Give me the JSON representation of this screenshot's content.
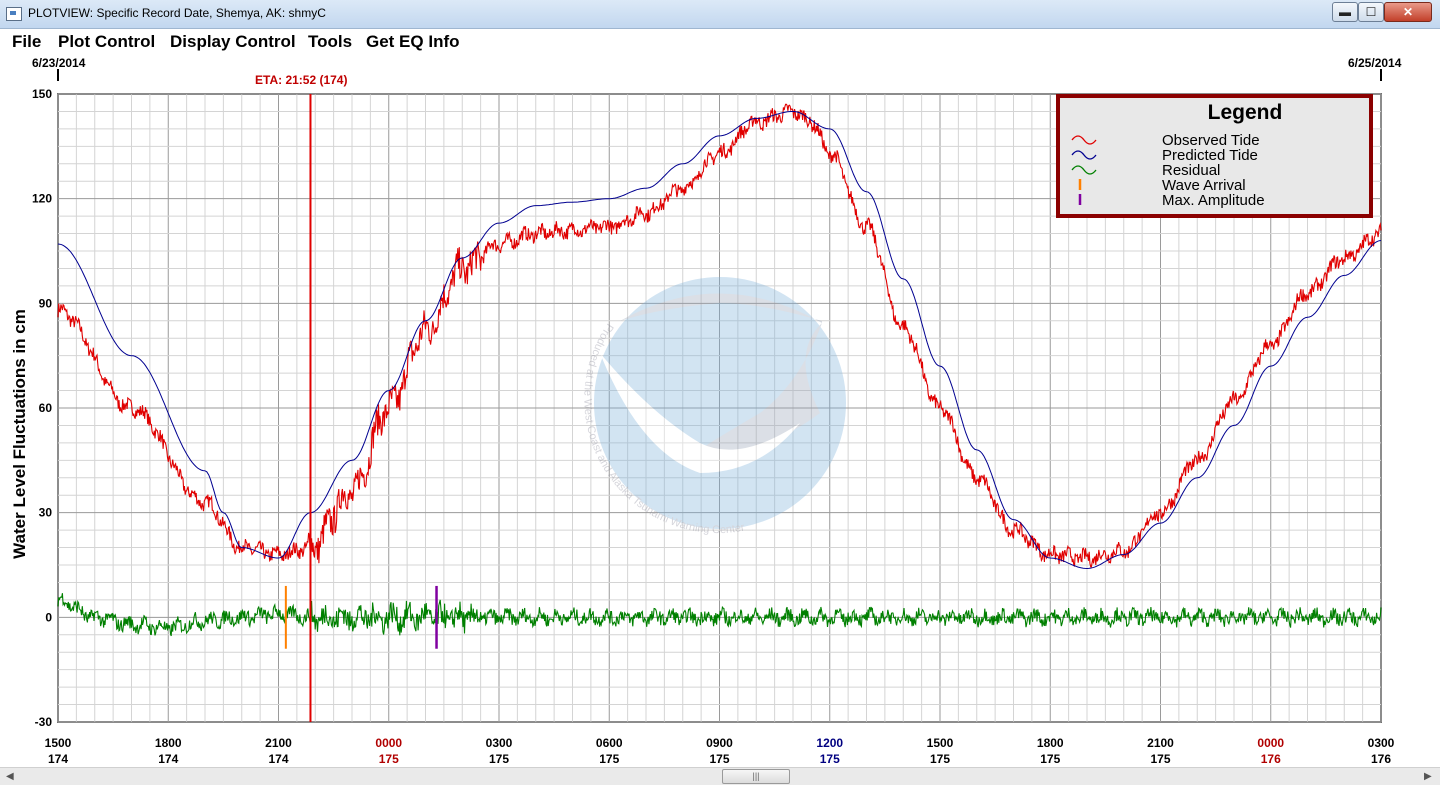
{
  "window": {
    "title": "PLOTVIEW: Specific Record Date, Shemya, AK: shmyC",
    "min_symbol": "▬",
    "max_symbol": "☐",
    "close_symbol": "✕"
  },
  "menu": [
    "File",
    "Plot Control",
    "Display Control",
    "Tools",
    "Get EQ Info"
  ],
  "plot": {
    "start_date": "6/23/2014",
    "end_date": "6/25/2014",
    "eta_label": "ETA: 21:52 (174)",
    "ylabel": "Water Level Fluctuations in cm",
    "y_ticks": [
      "150",
      "120",
      "90",
      "60",
      "30",
      "0",
      "-30"
    ],
    "x_ticks": [
      {
        "time": "1500",
        "day": "174",
        "color": "#000000"
      },
      {
        "time": "1800",
        "day": "174",
        "color": "#000000"
      },
      {
        "time": "2100",
        "day": "174",
        "color": "#000000"
      },
      {
        "time": "0000",
        "day": "175",
        "color": "#b00000"
      },
      {
        "time": "0300",
        "day": "175",
        "color": "#000000"
      },
      {
        "time": "0600",
        "day": "175",
        "color": "#000000"
      },
      {
        "time": "0900",
        "day": "175",
        "color": "#000000"
      },
      {
        "time": "1200",
        "day": "175",
        "color": "#000080"
      },
      {
        "time": "1500",
        "day": "175",
        "color": "#000000"
      },
      {
        "time": "1800",
        "day": "175",
        "color": "#000000"
      },
      {
        "time": "2100",
        "day": "175",
        "color": "#000000"
      },
      {
        "time": "0000",
        "day": "176",
        "color": "#b00000"
      },
      {
        "time": "0300",
        "day": "176",
        "color": "#000000"
      }
    ],
    "watermark_text": "Produced at the West Coast and Alaska Tsunami Warning Center"
  },
  "legend": {
    "title": "Legend",
    "items": [
      {
        "label": "Observed Tide",
        "color": "#e00000",
        "symbol": "wave"
      },
      {
        "label": "Predicted Tide",
        "color": "#000090",
        "symbol": "wave"
      },
      {
        "label": "Residual",
        "color": "#008000",
        "symbol": "wave"
      },
      {
        "label": "Wave Arrival",
        "color": "#ff8000",
        "symbol": "bar"
      },
      {
        "label": "Max. Amplitude",
        "color": "#8000a0",
        "symbol": "bar"
      }
    ]
  },
  "chart_data": {
    "type": "line",
    "ylabel": "Water Level Fluctuations in cm",
    "ylim": [
      -30,
      150
    ],
    "x_unit": "hours from 1500 day 174",
    "xlim": [
      0,
      36
    ],
    "eta_hours": 6.87,
    "wave_arrival_hours": 6.2,
    "max_amplitude_hours": 10.3,
    "series": [
      {
        "name": "Observed Tide",
        "color": "#e00000",
        "x": [
          0,
          2,
          4,
          5,
          6,
          6.87,
          8,
          9,
          10,
          11,
          12,
          13,
          14,
          15,
          16,
          17,
          18,
          19,
          20,
          20.5,
          21,
          22,
          23,
          24,
          25,
          26,
          27,
          28,
          29,
          30,
          31,
          32,
          33,
          34,
          35,
          36
        ],
        "y": [
          88,
          60,
          33,
          20,
          18,
          20,
          36,
          60,
          82,
          100,
          107,
          110,
          111,
          112,
          116,
          123,
          133,
          142,
          145,
          142,
          133,
          112,
          83,
          60,
          40,
          25,
          18,
          17,
          19,
          30,
          45,
          62,
          78,
          93,
          103,
          110
        ]
      },
      {
        "name": "Predicted Tide",
        "color": "#000090",
        "x": [
          0,
          2,
          4,
          4.5,
          5,
          6,
          6.87,
          8,
          9,
          10,
          11,
          12,
          13,
          14,
          15,
          16,
          17,
          18,
          19,
          20,
          21,
          22,
          23,
          24,
          25,
          26,
          27,
          28,
          29,
          30,
          31,
          32,
          33,
          34,
          35,
          36
        ],
        "y": [
          107,
          75,
          42,
          30,
          20,
          17,
          30,
          45,
          65,
          85,
          103,
          113,
          118,
          119,
          120,
          123,
          130,
          138,
          143,
          145,
          140,
          122,
          97,
          72,
          48,
          28,
          17,
          14,
          18,
          27,
          40,
          55,
          72,
          86,
          98,
          108
        ]
      },
      {
        "name": "Residual",
        "color": "#008000",
        "x": [
          0,
          1,
          2,
          3,
          4,
          5,
          6,
          7,
          8,
          9,
          10,
          11,
          12,
          13,
          14,
          15,
          16,
          17,
          18,
          19,
          20,
          21,
          22,
          23,
          24,
          25,
          26,
          27,
          28,
          29,
          30,
          31,
          32,
          33,
          34,
          35,
          36
        ],
        "y": [
          5,
          0,
          -2,
          -3,
          -1,
          0,
          1,
          0,
          0,
          0,
          0,
          0,
          0,
          0,
          0,
          0,
          0,
          0,
          0,
          0,
          0,
          0,
          0,
          0,
          0,
          0,
          0,
          0,
          0,
          0,
          0,
          0,
          0,
          0,
          0,
          0,
          0
        ]
      }
    ]
  }
}
